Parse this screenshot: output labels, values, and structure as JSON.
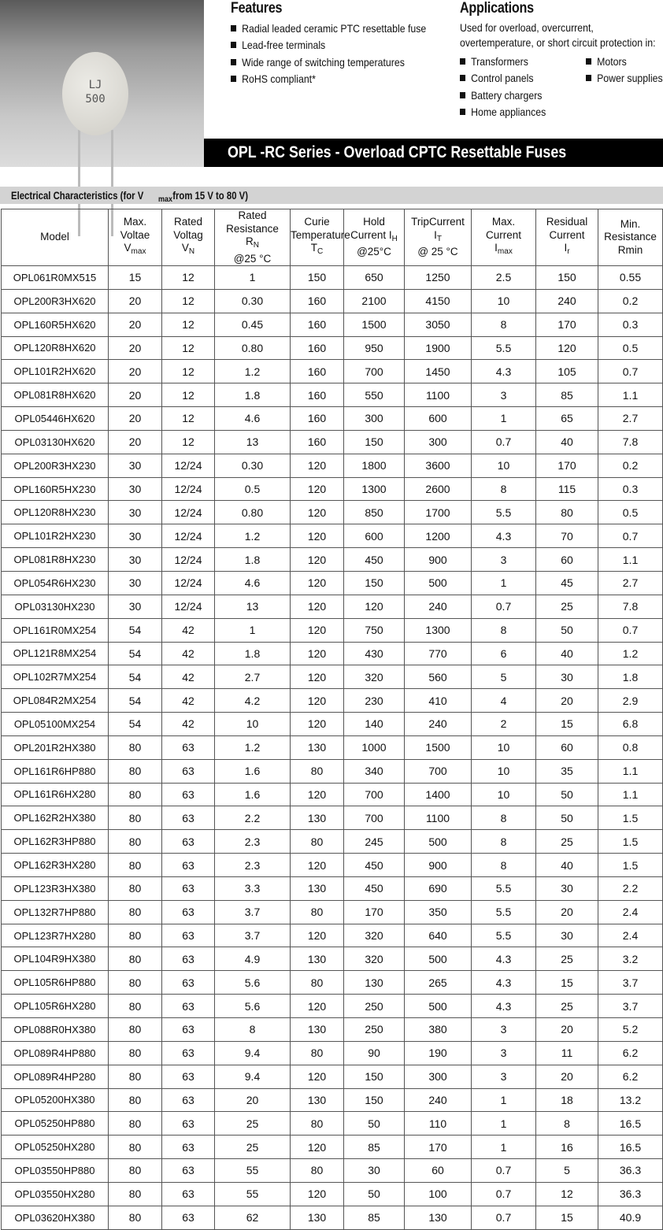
{
  "product_image": {
    "marking_line1": "LJ",
    "marking_line2": "500"
  },
  "features": {
    "title": "Features",
    "items": [
      "Radial leaded ceramic PTC resettable fuse",
      "Lead-free terminals",
      "Wide range of switching temperatures",
      "RoHS compliant*"
    ]
  },
  "applications": {
    "title": "Applications",
    "intro_line1": "Used for overload, overcurrent,",
    "intro_line2": "overtemperature, or short circuit protection in:",
    "col1": [
      "Transformers",
      "Control panels",
      "Battery chargers",
      "Home appliances"
    ],
    "col2": [
      "Motors",
      "Power supplies"
    ]
  },
  "banner": {
    "title": "OPL -RC Series - Overload CPTC Resettable Fuses"
  },
  "section": {
    "title_pre": "Electrical Characteristics (for V",
    "title_sub": "max",
    "title_post": " from 15 V to 80 V)"
  },
  "table": {
    "headers": [
      [
        "Model"
      ],
      [
        "Max.",
        "Voltae",
        "V",
        "max"
      ],
      [
        "Rated",
        "Voltag",
        "V",
        "N"
      ],
      [
        "Rated",
        "Resistance",
        "R",
        "N",
        "@25 °C"
      ],
      [
        "Curie",
        "Temper",
        "ature T",
        "C"
      ],
      [
        "Hold",
        "Current I",
        "H",
        "@25°C"
      ],
      [
        "TripCurrent",
        "I",
        "T",
        "@ 25 °C"
      ],
      [
        "Max.",
        "Current",
        "I",
        "max"
      ],
      [
        "Residual",
        "Current",
        "I",
        "r"
      ],
      [
        "Min.",
        "Resistance",
        "Rmin"
      ]
    ],
    "rows": [
      [
        "OPL061R0MX515",
        "15",
        "12",
        "1",
        "150",
        "650",
        "1250",
        "2.5",
        "150",
        "0.55"
      ],
      [
        "OPL200R3HX620",
        "20",
        "12",
        "0.30",
        "160",
        "2100",
        "4150",
        "10",
        "240",
        "0.2"
      ],
      [
        "OPL160R5HX620",
        "20",
        "12",
        "0.45",
        "160",
        "1500",
        "3050",
        "8",
        "170",
        "0.3"
      ],
      [
        "OPL120R8HX620",
        "20",
        "12",
        "0.80",
        "160",
        "950",
        "1900",
        "5.5",
        "120",
        "0.5"
      ],
      [
        "OPL101R2HX620",
        "20",
        "12",
        "1.2",
        "160",
        "700",
        "1450",
        "4.3",
        "105",
        "0.7"
      ],
      [
        "OPL081R8HX620",
        "20",
        "12",
        "1.8",
        "160",
        "550",
        "1100",
        "3",
        "85",
        "1.1"
      ],
      [
        "OPL05446HX620",
        "20",
        "12",
        "4.6",
        "160",
        "300",
        "600",
        "1",
        "65",
        "2.7"
      ],
      [
        "OPL03130HX620",
        "20",
        "12",
        "13",
        "160",
        "150",
        "300",
        "0.7",
        "40",
        "7.8"
      ],
      [
        "OPL200R3HX230",
        "30",
        "12/24",
        "0.30",
        "120",
        "1800",
        "3600",
        "10",
        "170",
        "0.2"
      ],
      [
        "OPL160R5HX230",
        "30",
        "12/24",
        "0.5",
        "120",
        "1300",
        "2600",
        "8",
        "115",
        "0.3"
      ],
      [
        "OPL120R8HX230",
        "30",
        "12/24",
        "0.80",
        "120",
        "850",
        "1700",
        "5.5",
        "80",
        "0.5"
      ],
      [
        "OPL101R2HX230",
        "30",
        "12/24",
        "1.2",
        "120",
        "600",
        "1200",
        "4.3",
        "70",
        "0.7"
      ],
      [
        "OPL081R8HX230",
        "30",
        "12/24",
        "1.8",
        "120",
        "450",
        "900",
        "3",
        "60",
        "1.1"
      ],
      [
        "OPL054R6HX230",
        "30",
        "12/24",
        "4.6",
        "120",
        "150",
        "500",
        "1",
        "45",
        "2.7"
      ],
      [
        "OPL03130HX230",
        "30",
        "12/24",
        "13",
        "120",
        "120",
        "240",
        "0.7",
        "25",
        "7.8"
      ],
      [
        "OPL161R0MX254",
        "54",
        "42",
        "1",
        "120",
        "750",
        "1300",
        "8",
        "50",
        "0.7"
      ],
      [
        "OPL121R8MX254",
        "54",
        "42",
        "1.8",
        "120",
        "430",
        "770",
        "6",
        "40",
        "1.2"
      ],
      [
        "OPL102R7MX254",
        "54",
        "42",
        "2.7",
        "120",
        "320",
        "560",
        "5",
        "30",
        "1.8"
      ],
      [
        "OPL084R2MX254",
        "54",
        "42",
        "4.2",
        "120",
        "230",
        "410",
        "4",
        "20",
        "2.9"
      ],
      [
        "OPL05100MX254",
        "54",
        "42",
        "10",
        "120",
        "140",
        "240",
        "2",
        "15",
        "6.8"
      ],
      [
        "OPL201R2HX380",
        "80",
        "63",
        "1.2",
        "130",
        "1000",
        "1500",
        "10",
        "60",
        "0.8"
      ],
      [
        "OPL161R6HP880",
        "80",
        "63",
        "1.6",
        "80",
        "340",
        "700",
        "10",
        "35",
        "1.1"
      ],
      [
        "OPL161R6HX280",
        "80",
        "63",
        "1.6",
        "120",
        "700",
        "1400",
        "10",
        "50",
        "1.1"
      ],
      [
        "OPL162R2HX380",
        "80",
        "63",
        "2.2",
        "130",
        "700",
        "1100",
        "8",
        "50",
        "1.5"
      ],
      [
        "OPL162R3HP880",
        "80",
        "63",
        "2.3",
        "80",
        "245",
        "500",
        "8",
        "25",
        "1.5"
      ],
      [
        "OPL162R3HX280",
        "80",
        "63",
        "2.3",
        "120",
        "450",
        "900",
        "8",
        "40",
        "1.5"
      ],
      [
        "OPL123R3HX380",
        "80",
        "63",
        "3.3",
        "130",
        "450",
        "690",
        "5.5",
        "30",
        "2.2"
      ],
      [
        "OPL132R7HP880",
        "80",
        "63",
        "3.7",
        "80",
        "170",
        "350",
        "5.5",
        "20",
        "2.4"
      ],
      [
        "OPL123R7HX280",
        "80",
        "63",
        "3.7",
        "120",
        "320",
        "640",
        "5.5",
        "30",
        "2.4"
      ],
      [
        "OPL104R9HX380",
        "80",
        "63",
        "4.9",
        "130",
        "320",
        "500",
        "4.3",
        "25",
        "3.2"
      ],
      [
        "OPL105R6HP880",
        "80",
        "63",
        "5.6",
        "80",
        "130",
        "265",
        "4.3",
        "15",
        "3.7"
      ],
      [
        "OPL105R6HX280",
        "80",
        "63",
        "5.6",
        "120",
        "250",
        "500",
        "4.3",
        "25",
        "3.7"
      ],
      [
        "OPL088R0HX380",
        "80",
        "63",
        "8",
        "130",
        "250",
        "380",
        "3",
        "20",
        "5.2"
      ],
      [
        "OPL089R4HP880",
        "80",
        "63",
        "9.4",
        "80",
        "90",
        "190",
        "3",
        "11",
        "6.2"
      ],
      [
        "OPL089R4HP280",
        "80",
        "63",
        "9.4",
        "120",
        "150",
        "300",
        "3",
        "20",
        "6.2"
      ],
      [
        "OPL05200HX380",
        "80",
        "63",
        "20",
        "130",
        "150",
        "240",
        "1",
        "18",
        "13.2"
      ],
      [
        "OPL05250HP880",
        "80",
        "63",
        "25",
        "80",
        "50",
        "110",
        "1",
        "8",
        "16.5"
      ],
      [
        "OPL05250HX280",
        "80",
        "63",
        "25",
        "120",
        "85",
        "170",
        "1",
        "16",
        "16.5"
      ],
      [
        "OPL03550HP880",
        "80",
        "63",
        "55",
        "80",
        "30",
        "60",
        "0.7",
        "5",
        "36.3"
      ],
      [
        "OPL03550HX280",
        "80",
        "63",
        "55",
        "120",
        "50",
        "100",
        "0.7",
        "12",
        "36.3"
      ],
      [
        "OPL03620HX380",
        "80",
        "63",
        "62",
        "130",
        "85",
        "130",
        "0.7",
        "15",
        "40.9"
      ]
    ]
  }
}
